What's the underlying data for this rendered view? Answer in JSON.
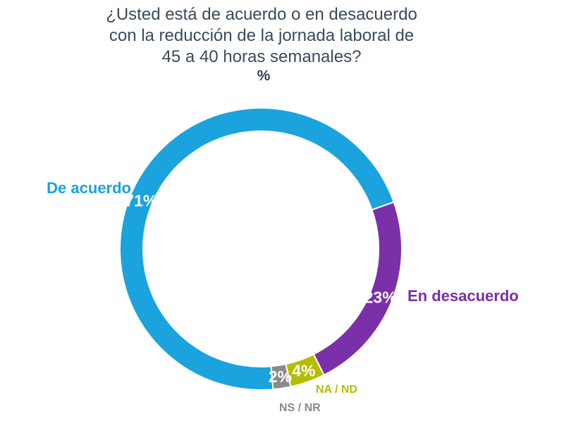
{
  "chart_data": {
    "type": "donut",
    "title_lines": [
      "¿Usted está de acuerdo o en desacuerdo",
      "con la reducción de la jornada laboral de",
      "45 a 40 horas semanales?"
    ],
    "unit": "%",
    "slices": [
      {
        "category": "De acuerdo",
        "value": 71,
        "label": "71%",
        "color": "#1aa3dc"
      },
      {
        "category": "En desacuerdo",
        "value": 23,
        "label": "23%",
        "color": "#7b2fa8"
      },
      {
        "category": "NA / ND",
        "value": 4,
        "label": "4%",
        "color": "#b5bd00"
      },
      {
        "category": "NS / NR",
        "value": 2,
        "label": "2%",
        "color": "#8a8a8a"
      }
    ]
  }
}
